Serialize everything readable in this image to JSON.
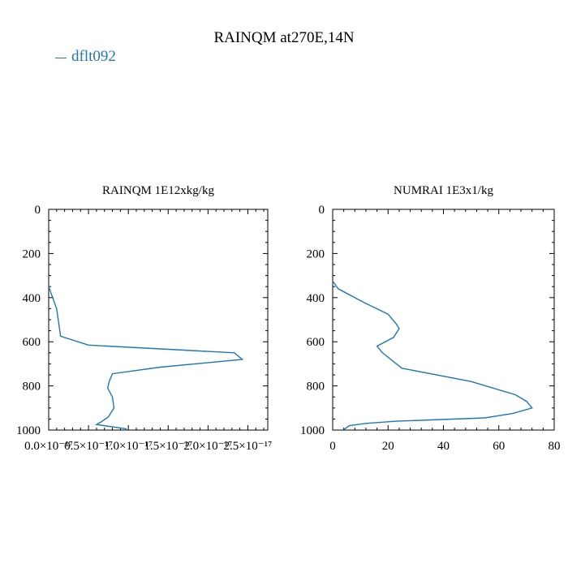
{
  "title": "RAINQM at270E,14N",
  "legend": [
    {
      "label": "dflt092",
      "color": "#1f77b4"
    }
  ],
  "chart_data": [
    {
      "type": "line",
      "title": "RAINQM  1E12xkg/kg",
      "xlim": [
        0,
        2.75e-17
      ],
      "ylim": [
        1000,
        0
      ],
      "xticks": [
        0,
        5e-18,
        1e-17,
        1.5e-17,
        2e-17,
        2.5e-17
      ],
      "xtick_labels": [
        "0.0×10⁻¹⁷",
        "0.5×10⁻¹⁷",
        "1.0×10⁻¹⁷",
        "1.5×10⁻¹⁷",
        "2.0×10⁻¹⁷",
        "2.5×10⁻¹⁷"
      ],
      "yticks": [
        0,
        200,
        400,
        600,
        800,
        1000
      ],
      "ytick_labels": [
        "0",
        "200",
        "400",
        "600",
        "800",
        "1000"
      ],
      "series": [
        {
          "name": "dflt092",
          "color": "#1f77b4",
          "x": [
            0,
            1e-18,
            1.5e-18,
            5e-18,
            2.33e-17,
            2.43e-17,
            1.4e-17,
            8e-18,
            7.6e-18,
            7.4e-18,
            8e-18,
            8.2e-18,
            7.5e-18,
            6.5e-18,
            6e-18,
            9.8e-18
          ],
          "y": [
            350,
            450,
            575,
            615,
            650,
            680,
            715,
            745,
            780,
            810,
            850,
            900,
            940,
            965,
            975,
            995
          ]
        }
      ]
    },
    {
      "type": "line",
      "title": "NUMRAI  1E3x1/kg",
      "xlim": [
        0,
        80
      ],
      "ylim": [
        1000,
        0
      ],
      "xticks": [
        0,
        20,
        40,
        60,
        80
      ],
      "xtick_labels": [
        "0",
        "20",
        "40",
        "60",
        "80"
      ],
      "yticks": [
        0,
        200,
        400,
        600,
        800,
        1000
      ],
      "ytick_labels": [
        "0",
        "200",
        "400",
        "600",
        "800",
        "1000"
      ],
      "series": [
        {
          "name": "dflt092",
          "color": "#1f77b4",
          "x": [
            0,
            2,
            11,
            20,
            23,
            24,
            22,
            16,
            18,
            25,
            50,
            66,
            70,
            72,
            65,
            55,
            23,
            12,
            6,
            4
          ],
          "y": [
            325,
            360,
            420,
            475,
            520,
            540,
            580,
            620,
            650,
            720,
            780,
            840,
            870,
            900,
            925,
            945,
            960,
            970,
            980,
            998
          ]
        }
      ]
    }
  ]
}
